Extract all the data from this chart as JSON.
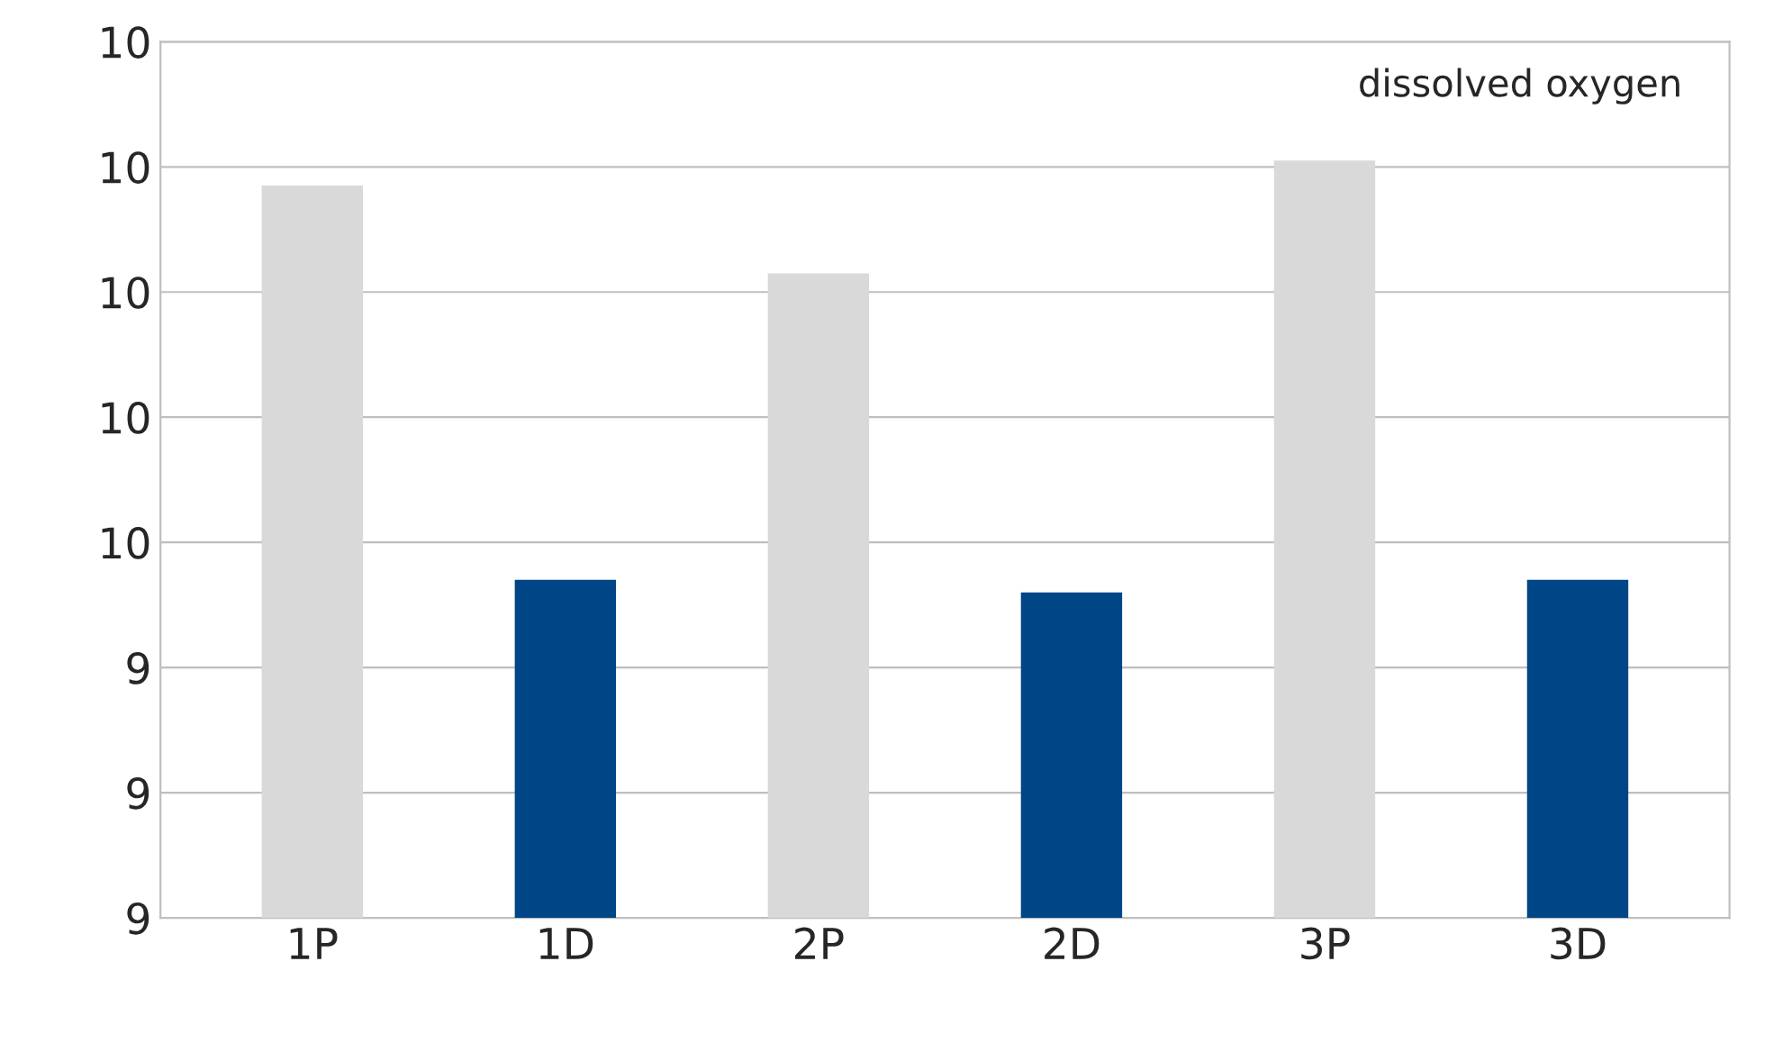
{
  "chart_data": {
    "type": "bar",
    "title": "dissolved oxygen",
    "categories": [
      "1P",
      "1D",
      "2P",
      "2D",
      "3P",
      "3D"
    ],
    "values": [
      10.17,
      9.54,
      10.03,
      9.52,
      10.21,
      9.54
    ],
    "colors": [
      "#d9d9d9",
      "#004586",
      "#d9d9d9",
      "#004586",
      "#d9d9d9",
      "#004586"
    ],
    "ylim": [
      9.0,
      10.4
    ],
    "yticks": [
      {
        "value": 9.0,
        "label": "9"
      },
      {
        "value": 9.2,
        "label": "9"
      },
      {
        "value": 9.4,
        "label": "9"
      },
      {
        "value": 9.6,
        "label": "10"
      },
      {
        "value": 9.8,
        "label": "10"
      },
      {
        "value": 10.0,
        "label": "10"
      },
      {
        "value": 10.2,
        "label": "10"
      },
      {
        "value": 10.4,
        "label": "10"
      }
    ],
    "grid": "y"
  }
}
